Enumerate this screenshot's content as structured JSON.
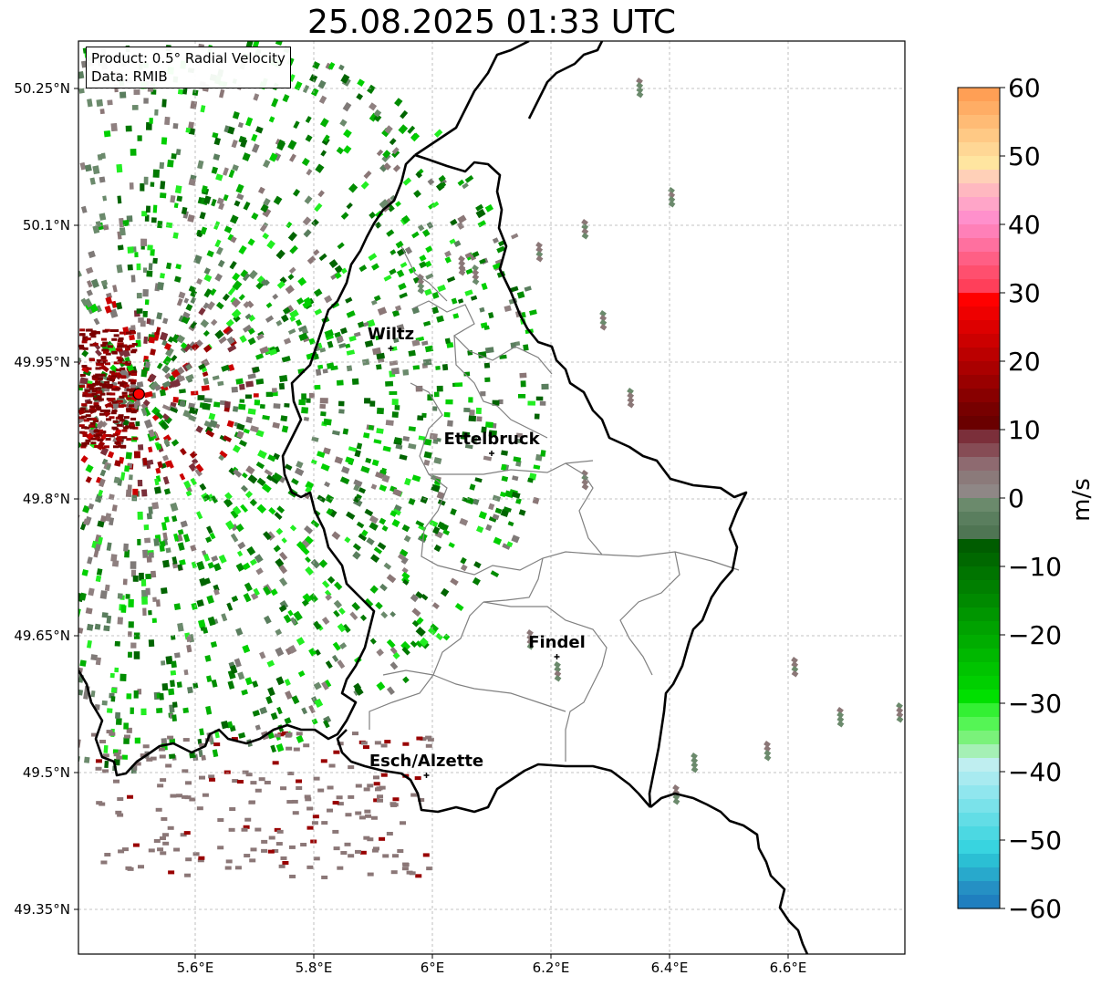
{
  "title": "25.08.2025 01:33 UTC",
  "info_box": {
    "product_line": "Product: 0.5° Radial Velocity",
    "data_line": "Data: RMIB"
  },
  "map": {
    "lat_ticks": [
      "50.25°N",
      "50.1°N",
      "49.95°N",
      "49.8°N",
      "49.65°N",
      "49.5°N",
      "49.35°N"
    ],
    "lon_ticks": [
      "5.6°E",
      "5.8°E",
      "6°E",
      "6.2°E",
      "6.4°E",
      "6.6°E"
    ],
    "cities": [
      {
        "name": "Wiltz",
        "lon": 5.93,
        "lat": 49.965
      },
      {
        "name": "Ettelbruck",
        "lon": 6.1,
        "lat": 49.85
      },
      {
        "name": "Findel",
        "lon": 6.21,
        "lat": 49.627
      },
      {
        "name": "Esch/Alzette",
        "lon": 5.99,
        "lat": 49.497
      }
    ],
    "radar_site": {
      "lon": 5.505,
      "lat": 49.915,
      "color": "#ff0000"
    }
  },
  "colorbar": {
    "label": "m/s",
    "min": -60,
    "max": 60,
    "ticks": [
      "60",
      "50",
      "40",
      "30",
      "20",
      "10",
      "0",
      "−10",
      "−20",
      "−30",
      "−40",
      "−50",
      "−60"
    ],
    "colors_top_to_bottom": [
      "#ff9f55",
      "#ffad65",
      "#ffbb75",
      "#ffc985",
      "#ffd795",
      "#ffe5a0",
      "#ffd0b8",
      "#ffb8c0",
      "#ffa5c8",
      "#ff90cc",
      "#ff80b8",
      "#ff709f",
      "#ff5f85",
      "#ff4f6e",
      "#ff3f5a",
      "#ff0000",
      "#ee0000",
      "#dd0000",
      "#cc0000",
      "#bb0000",
      "#aa0000",
      "#990000",
      "#880000",
      "#770000",
      "#6a0000",
      "#7b2f3a",
      "#864c55",
      "#8e6a70",
      "#8b7a7a",
      "#8f8786",
      "#6b8a6c",
      "#5a7e5e",
      "#4f7553",
      "#005c00",
      "#006800",
      "#007400",
      "#007f00",
      "#008a00",
      "#009600",
      "#00a200",
      "#00ad00",
      "#00b800",
      "#00c400",
      "#00cf00",
      "#00e000",
      "#33f033",
      "#55f555",
      "#7af27a",
      "#a5f0b5",
      "#bfeef0",
      "#a8eaf0",
      "#90e6ee",
      "#7ae2ea",
      "#62dde6",
      "#4cd8e2",
      "#38d4e0",
      "#2bbfd4",
      "#28a9cc",
      "#2590c4",
      "#1f7fbf"
    ]
  },
  "colors": {
    "border": "#000000",
    "admin_lines": "#808080",
    "grid": "#b0b0b0"
  }
}
